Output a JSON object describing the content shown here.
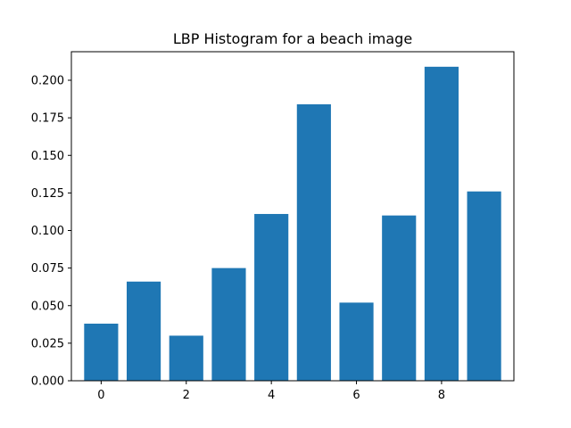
{
  "chart_data": {
    "type": "bar",
    "title": "LBP Histogram for a beach image",
    "xlabel": "",
    "ylabel": "",
    "x": [
      0,
      1,
      2,
      3,
      4,
      5,
      6,
      7,
      8,
      9
    ],
    "values": [
      0.038,
      0.066,
      0.03,
      0.075,
      0.111,
      0.184,
      0.052,
      0.11,
      0.209,
      0.126
    ],
    "xlim": [
      -0.7,
      9.7
    ],
    "ylim": [
      0,
      0.219
    ],
    "xticks": [
      0,
      2,
      4,
      6,
      8
    ],
    "xtick_labels": [
      "0",
      "2",
      "4",
      "6",
      "8"
    ],
    "yticks": [
      0,
      0.025,
      0.05,
      0.075,
      0.1,
      0.125,
      0.15,
      0.175,
      0.2
    ],
    "ytick_labels": [
      "0.000",
      "0.025",
      "0.050",
      "0.075",
      "0.100",
      "0.125",
      "0.150",
      "0.175",
      "0.200"
    ],
    "bar_color": "#1f77b4",
    "grid": false,
    "legend": "none"
  }
}
